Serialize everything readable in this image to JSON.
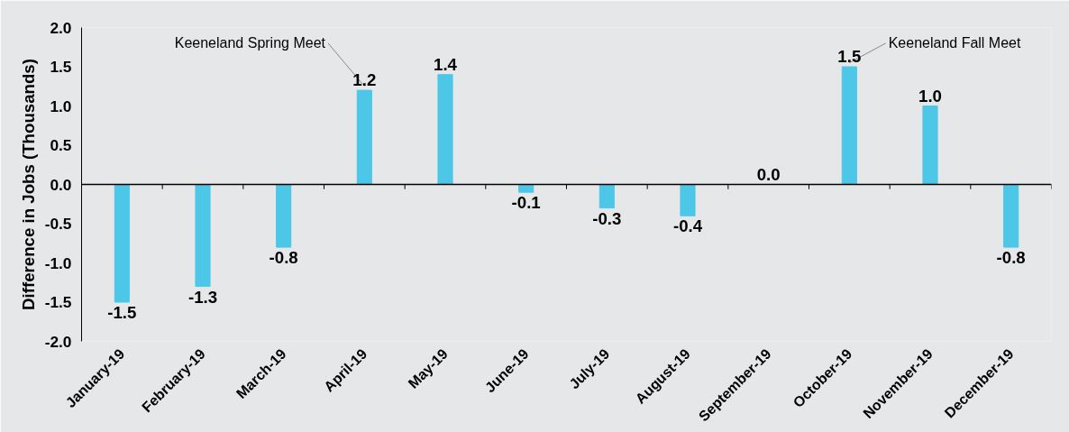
{
  "chart_data": {
    "type": "bar",
    "ylabel": "Difference in Jobs (Thousands)",
    "categories": [
      "January-19",
      "February-19",
      "March-19",
      "April-19",
      "May-19",
      "June-19",
      "July-19",
      "August-19",
      "September-19",
      "October-19",
      "November-19",
      "December-19"
    ],
    "values": [
      -1.5,
      -1.3,
      -0.8,
      1.2,
      1.4,
      -0.1,
      -0.3,
      -0.4,
      0.0,
      1.5,
      1.0,
      -0.8
    ],
    "color": "#4dc7e8",
    "ylim": [
      -2.0,
      2.0
    ],
    "yticks": [
      {
        "value": -2,
        "label": "-2.0"
      },
      {
        "value": -1.5,
        "label": "-1.5"
      },
      {
        "value": -1,
        "label": "-1.0"
      },
      {
        "value": -0.5,
        "label": "-0.5"
      },
      {
        "value": 0,
        "label": "0.0"
      },
      {
        "value": 0.5,
        "label": "0.5"
      },
      {
        "value": 1,
        "label": "1.0"
      },
      {
        "value": 1.5,
        "label": "1.5"
      },
      {
        "value": 2,
        "label": "2.0"
      }
    ],
    "value_labels": [
      "-1.5",
      "-1.3",
      "-0.8",
      "1.2",
      "1.4",
      "-0.1",
      "-0.3",
      "-0.4",
      "0.0",
      "1.5",
      "1.0",
      "-0.8"
    ],
    "annotations": [
      {
        "text": "Keeneland Spring Meet",
        "x": "April-19",
        "y": 1.2
      },
      {
        "text": "Keeneland Fall Meet",
        "x": "October-19",
        "y": 1.5
      }
    ]
  }
}
